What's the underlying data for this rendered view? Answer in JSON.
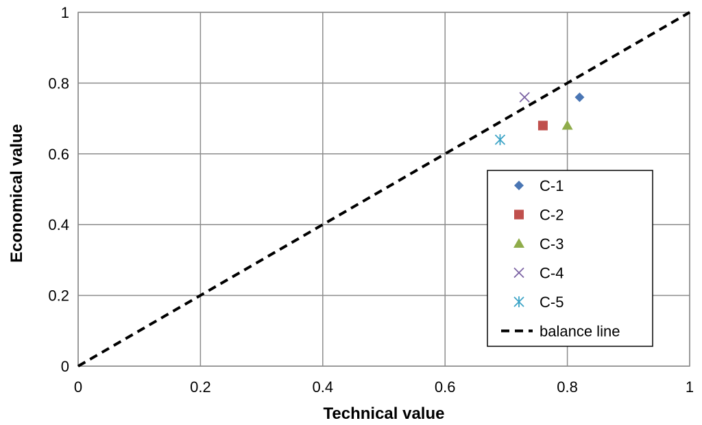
{
  "chart_data": {
    "type": "scatter",
    "title": "",
    "xlabel": "Technical value",
    "ylabel": "Economical value",
    "xlim": [
      0,
      1
    ],
    "ylim": [
      0,
      1
    ],
    "grid": true,
    "x_ticks": [
      0,
      0.2,
      0.4,
      0.6,
      0.8,
      1
    ],
    "y_ticks": [
      0,
      0.2,
      0.4,
      0.6,
      0.8,
      1
    ],
    "x_tick_labels": [
      "0",
      "0.2",
      "0.4",
      "0.6",
      "0.8",
      "1"
    ],
    "y_tick_labels": [
      "0",
      "0.2",
      "0.4",
      "0.6",
      "0.8",
      "1"
    ],
    "series": [
      {
        "name": "C-1",
        "marker": "diamond",
        "color": "#4a76b4",
        "x": [
          0.82
        ],
        "y": [
          0.76
        ]
      },
      {
        "name": "C-2",
        "marker": "square",
        "color": "#c0504d",
        "x": [
          0.76
        ],
        "y": [
          0.68
        ]
      },
      {
        "name": "C-3",
        "marker": "triangle",
        "color": "#8fac4a",
        "x": [
          0.8
        ],
        "y": [
          0.68
        ]
      },
      {
        "name": "C-4",
        "marker": "x",
        "color": "#7b62a3",
        "x": [
          0.73
        ],
        "y": [
          0.76
        ]
      },
      {
        "name": "C-5",
        "marker": "asterisk",
        "color": "#3ba3c6",
        "x": [
          0.69
        ],
        "y": [
          0.64
        ]
      },
      {
        "name": "balance line",
        "type": "line",
        "style": "dashed",
        "color": "#000000",
        "x": [
          0,
          1
        ],
        "y": [
          0,
          1
        ]
      }
    ],
    "legend_position": "right"
  }
}
